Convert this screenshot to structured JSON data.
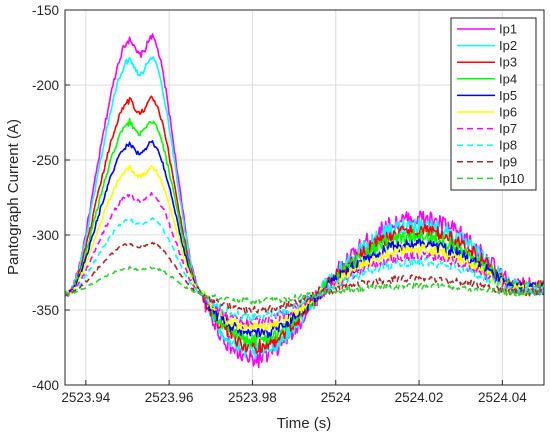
{
  "chart_data": {
    "type": "line",
    "xlabel": "Time (s)",
    "ylabel": "Pantograph Current (A)",
    "xlim": [
      2523.935,
      2524.05
    ],
    "ylim": [
      -400,
      -150
    ],
    "x_ticks": [
      2523.94,
      2523.96,
      2523.98,
      2524,
      2524.02,
      2524.04
    ],
    "x_tick_labels": [
      "2523.94",
      "2523.96",
      "2523.98",
      "2524",
      "2524.02",
      "2524.04"
    ],
    "y_ticks": [
      -400,
      -350,
      -300,
      -250,
      -200,
      -150
    ],
    "y_tick_labels": [
      "-400",
      "-350",
      "-300",
      "-250",
      "-200",
      "-150"
    ],
    "grid": true,
    "legend_position": "top-right",
    "series": [
      {
        "name": "Ip1",
        "color": "#ff00ff",
        "style": "solid",
        "peak": -160,
        "valley": -383,
        "hump": -289
      },
      {
        "name": "Ip2",
        "color": "#00ffff",
        "style": "solid",
        "peak": -174,
        "valley": -378,
        "hump": -293
      },
      {
        "name": "Ip3",
        "color": "#ff0000",
        "style": "solid",
        "peak": -203,
        "valley": -374,
        "hump": -297
      },
      {
        "name": "Ip4",
        "color": "#00ff00",
        "style": "solid",
        "peak": -219,
        "valley": -370,
        "hump": -301
      },
      {
        "name": "Ip5",
        "color": "#0000ff",
        "style": "solid",
        "peak": -234,
        "valley": -366,
        "hump": -306
      },
      {
        "name": "Ip6",
        "color": "#ffff00",
        "style": "solid",
        "peak": -251,
        "valley": -362,
        "hump": -310
      },
      {
        "name": "Ip7",
        "color": "#ff00ff",
        "style": "dashed",
        "peak": -270,
        "valley": -358,
        "hump": -314
      },
      {
        "name": "Ip8",
        "color": "#00ffff",
        "style": "dashed",
        "peak": -287,
        "valley": -355,
        "hump": -318
      },
      {
        "name": "Ip9",
        "color": "#a52a2a",
        "style": "dashed",
        "peak": -304,
        "valley": -350,
        "hump": -329
      },
      {
        "name": "Ip10",
        "color": "#33cc33",
        "style": "dashed",
        "peak": -321,
        "valley": -344,
        "hump": -334
      }
    ]
  }
}
